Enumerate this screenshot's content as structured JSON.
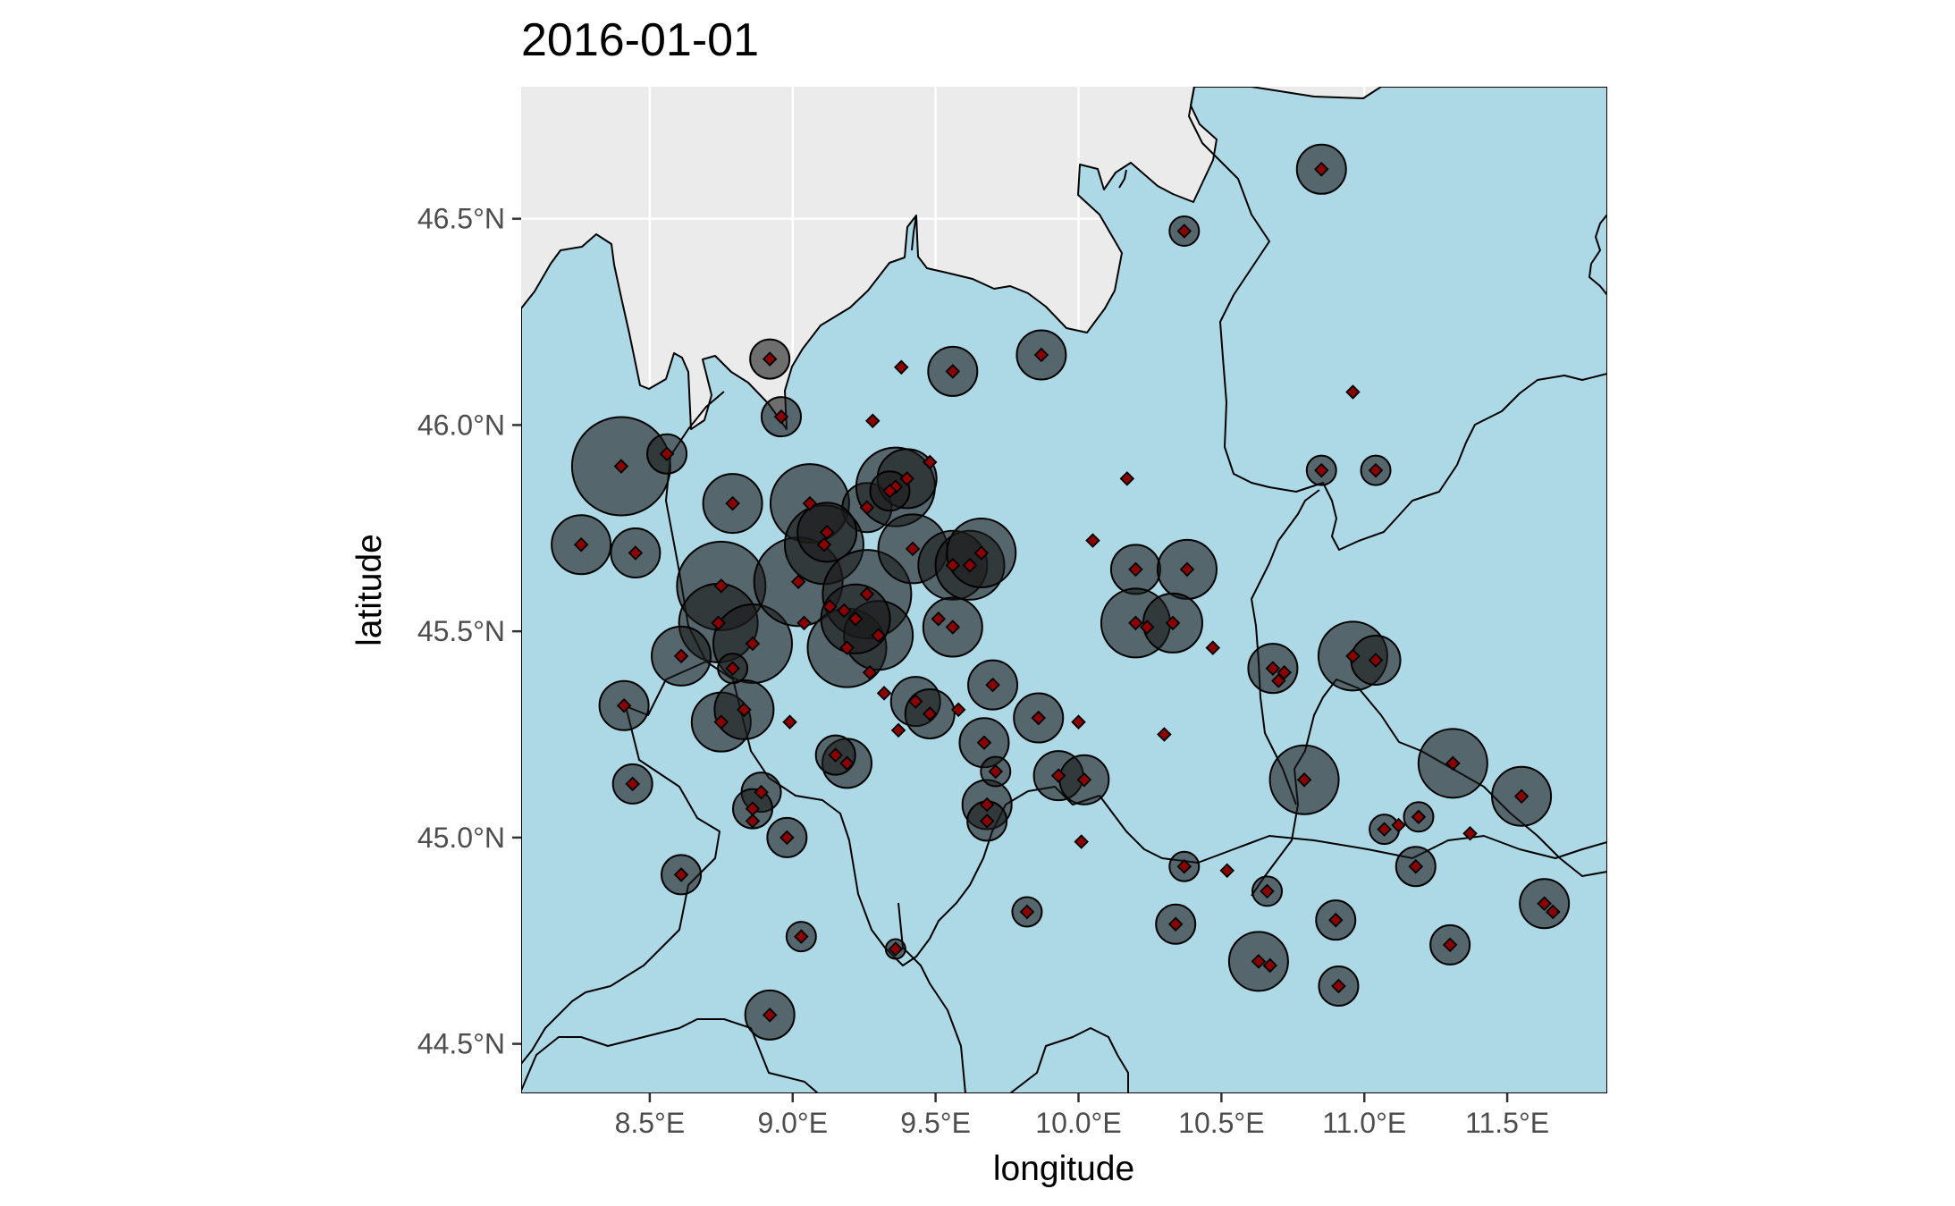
{
  "map": {
    "title": "2016-01-01",
    "xlabel": "longitude",
    "ylabel": "latitude",
    "background_color": "#ebebeb",
    "land_color": "#add8e6",
    "border_color": "#000000",
    "bubble_color": "#1a1a1a",
    "marker_color": "#8b0000",
    "x_ticks": [
      {
        "value": 8.5,
        "label": "8.5°E"
      },
      {
        "value": 9.0,
        "label": "9.0°E"
      },
      {
        "value": 9.5,
        "label": "9.5°E"
      },
      {
        "value": 10.0,
        "label": "10.0°E"
      },
      {
        "value": 10.5,
        "label": "10.5°E"
      },
      {
        "value": 11.0,
        "label": "11.0°E"
      },
      {
        "value": 11.5,
        "label": "11.5°E"
      }
    ],
    "y_ticks": [
      {
        "value": 44.5,
        "label": "44.5°N"
      },
      {
        "value": 45.0,
        "label": "45.0°N"
      },
      {
        "value": 45.5,
        "label": "45.5°N"
      },
      {
        "value": 46.0,
        "label": "46.0°N"
      },
      {
        "value": 46.5,
        "label": "46.5°N"
      }
    ]
  },
  "chart_data": {
    "type": "scatter",
    "title": "2016-01-01",
    "xlabel": "longitude",
    "ylabel": "latitude",
    "xlim": [
      8.05,
      11.85
    ],
    "ylim": [
      44.38,
      46.82
    ],
    "grid": true,
    "legend": "none",
    "stations": [
      {
        "lon": 8.4,
        "lat": 45.9,
        "v": 5
      },
      {
        "lon": 8.56,
        "lat": 45.93,
        "v": 2
      },
      {
        "lon": 8.26,
        "lat": 45.71,
        "v": 3
      },
      {
        "lon": 8.45,
        "lat": 45.69,
        "v": 2.5
      },
      {
        "lon": 8.79,
        "lat": 45.81,
        "v": 3
      },
      {
        "lon": 8.92,
        "lat": 46.16,
        "v": 2
      },
      {
        "lon": 8.96,
        "lat": 46.02,
        "v": 2
      },
      {
        "lon": 9.06,
        "lat": 45.81,
        "v": 4
      },
      {
        "lon": 9.26,
        "lat": 45.8,
        "v": 2.5
      },
      {
        "lon": 9.36,
        "lat": 45.85,
        "v": 4
      },
      {
        "lon": 9.4,
        "lat": 45.87,
        "v": 3
      },
      {
        "lon": 9.56,
        "lat": 46.13,
        "v": 2.5
      },
      {
        "lon": 9.87,
        "lat": 46.17,
        "v": 2.5
      },
      {
        "lon": 8.75,
        "lat": 45.61,
        "v": 4.5
      },
      {
        "lon": 8.74,
        "lat": 45.52,
        "v": 4
      },
      {
        "lon": 8.86,
        "lat": 45.47,
        "v": 4
      },
      {
        "lon": 9.02,
        "lat": 45.62,
        "v": 4.5
      },
      {
        "lon": 9.11,
        "lat": 45.71,
        "v": 4
      },
      {
        "lon": 9.19,
        "lat": 45.46,
        "v": 4
      },
      {
        "lon": 9.26,
        "lat": 45.59,
        "v": 4.5
      },
      {
        "lon": 9.3,
        "lat": 45.49,
        "v": 3.5
      },
      {
        "lon": 9.42,
        "lat": 45.7,
        "v": 3.5
      },
      {
        "lon": 9.56,
        "lat": 45.66,
        "v": 3.5
      },
      {
        "lon": 9.62,
        "lat": 45.66,
        "v": 3.5
      },
      {
        "lon": 9.66,
        "lat": 45.69,
        "v": 3.5
      },
      {
        "lon": 9.56,
        "lat": 45.51,
        "v": 3
      },
      {
        "lon": 9.19,
        "lat": 45.18,
        "v": 2.5
      },
      {
        "lon": 8.61,
        "lat": 45.44,
        "v": 3
      },
      {
        "lon": 8.41,
        "lat": 45.32,
        "v": 2.5
      },
      {
        "lon": 8.75,
        "lat": 45.28,
        "v": 3
      },
      {
        "lon": 8.83,
        "lat": 45.31,
        "v": 3
      },
      {
        "lon": 9.43,
        "lat": 45.33,
        "v": 2.5
      },
      {
        "lon": 9.48,
        "lat": 45.3,
        "v": 2.5
      },
      {
        "lon": 9.7,
        "lat": 45.37,
        "v": 2.5
      },
      {
        "lon": 9.67,
        "lat": 45.23,
        "v": 2.5
      },
      {
        "lon": 9.86,
        "lat": 45.29,
        "v": 2.5
      },
      {
        "lon": 9.68,
        "lat": 45.08,
        "v": 2.5
      },
      {
        "lon": 9.93,
        "lat": 45.15,
        "v": 2.5
      },
      {
        "lon": 10.02,
        "lat": 45.14,
        "v": 2.5
      },
      {
        "lon": 8.44,
        "lat": 45.13,
        "v": 2
      },
      {
        "lon": 8.61,
        "lat": 44.91,
        "v": 2
      },
      {
        "lon": 8.89,
        "lat": 45.11,
        "v": 2
      },
      {
        "lon": 8.98,
        "lat": 45.0,
        "v": 2
      },
      {
        "lon": 8.86,
        "lat": 45.07,
        "v": 2
      },
      {
        "lon": 8.92,
        "lat": 44.57,
        "v": 2.5
      },
      {
        "lon": 9.03,
        "lat": 44.76,
        "v": 1.5
      },
      {
        "lon": 9.36,
        "lat": 44.73,
        "v": 1
      },
      {
        "lon": 9.82,
        "lat": 44.82,
        "v": 1.5
      },
      {
        "lon": 9.68,
        "lat": 45.04,
        "v": 2
      },
      {
        "lon": 10.2,
        "lat": 45.65,
        "v": 2.5
      },
      {
        "lon": 10.38,
        "lat": 45.65,
        "v": 3
      },
      {
        "lon": 10.2,
        "lat": 45.52,
        "v": 3.5
      },
      {
        "lon": 10.33,
        "lat": 45.52,
        "v": 3
      },
      {
        "lon": 10.68,
        "lat": 45.41,
        "v": 2.5
      },
      {
        "lon": 10.96,
        "lat": 45.44,
        "v": 3.5
      },
      {
        "lon": 11.04,
        "lat": 45.43,
        "v": 2.5
      },
      {
        "lon": 10.79,
        "lat": 45.14,
        "v": 3.5
      },
      {
        "lon": 11.31,
        "lat": 45.18,
        "v": 3.5
      },
      {
        "lon": 11.55,
        "lat": 45.1,
        "v": 3
      },
      {
        "lon": 11.07,
        "lat": 45.02,
        "v": 1.5
      },
      {
        "lon": 11.18,
        "lat": 44.93,
        "v": 2
      },
      {
        "lon": 11.19,
        "lat": 45.05,
        "v": 1.5
      },
      {
        "lon": 10.37,
        "lat": 44.93,
        "v": 1.5
      },
      {
        "lon": 10.34,
        "lat": 44.79,
        "v": 2
      },
      {
        "lon": 10.66,
        "lat": 44.87,
        "v": 1.5
      },
      {
        "lon": 10.63,
        "lat": 44.7,
        "v": 3
      },
      {
        "lon": 10.9,
        "lat": 44.8,
        "v": 2
      },
      {
        "lon": 10.91,
        "lat": 44.64,
        "v": 2
      },
      {
        "lon": 11.3,
        "lat": 44.74,
        "v": 2
      },
      {
        "lon": 11.63,
        "lat": 44.84,
        "v": 2.5
      },
      {
        "lon": 10.85,
        "lat": 46.62,
        "v": 2.5
      },
      {
        "lon": 10.37,
        "lat": 46.47,
        "v": 1.5
      },
      {
        "lon": 10.85,
        "lat": 45.89,
        "v": 1.5
      },
      {
        "lon": 11.04,
        "lat": 45.89,
        "v": 1.5
      },
      {
        "lon": 9.71,
        "lat": 45.16,
        "v": 1.5
      },
      {
        "lon": 8.79,
        "lat": 45.41,
        "v": 1.5
      },
      {
        "lon": 9.15,
        "lat": 45.2,
        "v": 2
      },
      {
        "lon": 9.22,
        "lat": 45.53,
        "v": 3.5
      },
      {
        "lon": 9.12,
        "lat": 45.74,
        "v": 3
      },
      {
        "lon": 9.34,
        "lat": 45.84,
        "v": 2
      }
    ],
    "markers_only": [
      {
        "lon": 9.38,
        "lat": 46.14
      },
      {
        "lon": 9.28,
        "lat": 46.01
      },
      {
        "lon": 9.48,
        "lat": 45.91
      },
      {
        "lon": 10.17,
        "lat": 45.87
      },
      {
        "lon": 10.96,
        "lat": 46.08
      },
      {
        "lon": 10.05,
        "lat": 45.72
      },
      {
        "lon": 9.04,
        "lat": 45.52
      },
      {
        "lon": 8.99,
        "lat": 45.28
      },
      {
        "lon": 9.32,
        "lat": 45.35
      },
      {
        "lon": 9.37,
        "lat": 45.26
      },
      {
        "lon": 9.58,
        "lat": 45.31
      },
      {
        "lon": 10.0,
        "lat": 45.28
      },
      {
        "lon": 10.3,
        "lat": 45.25
      },
      {
        "lon": 10.47,
        "lat": 45.46
      },
      {
        "lon": 10.72,
        "lat": 45.4
      },
      {
        "lon": 10.7,
        "lat": 45.38
      },
      {
        "lon": 11.37,
        "lat": 45.01
      },
      {
        "lon": 11.12,
        "lat": 45.03
      },
      {
        "lon": 10.01,
        "lat": 44.99
      },
      {
        "lon": 10.52,
        "lat": 44.92
      },
      {
        "lon": 10.67,
        "lat": 44.69
      },
      {
        "lon": 11.66,
        "lat": 44.82
      },
      {
        "lon": 8.86,
        "lat": 45.04
      },
      {
        "lon": 9.18,
        "lat": 45.55
      },
      {
        "lon": 9.27,
        "lat": 45.4
      },
      {
        "lon": 9.51,
        "lat": 45.53
      },
      {
        "lon": 10.24,
        "lat": 45.51
      },
      {
        "lon": 9.13,
        "lat": 45.56
      }
    ]
  }
}
